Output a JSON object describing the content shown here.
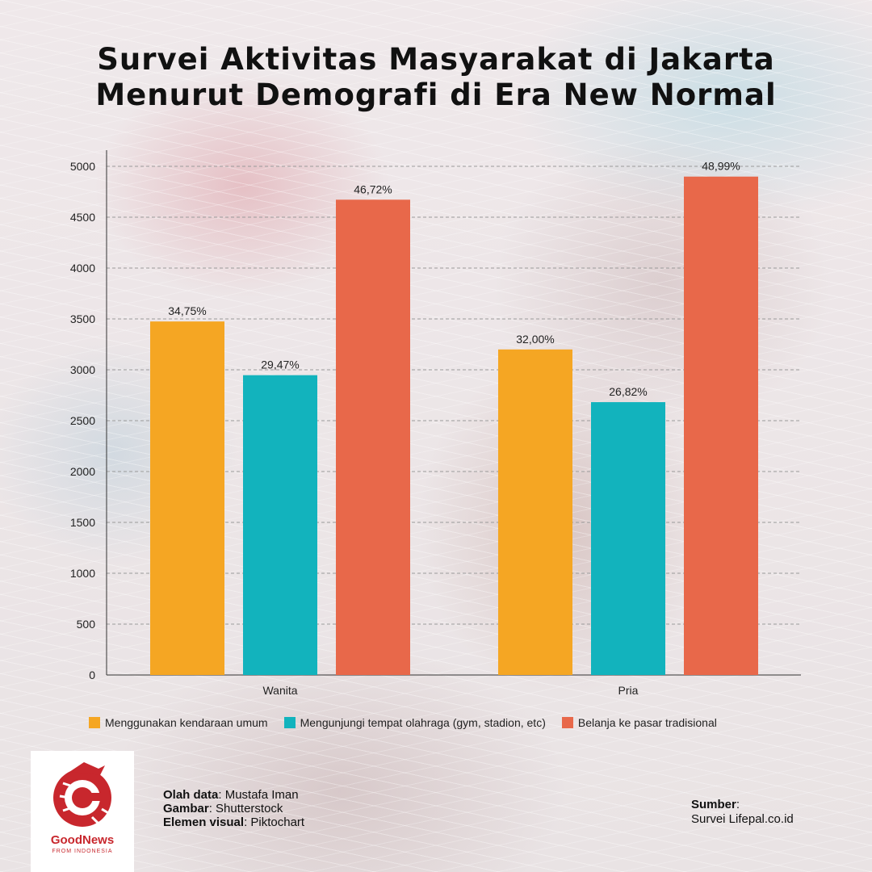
{
  "title": {
    "line1": "Survei Aktivitas Masyarakat di Jakarta",
    "line2": "Menurut Demografi di Era New Normal"
  },
  "chart_data": {
    "type": "bar",
    "categories": [
      "Wanita",
      "Pria"
    ],
    "series": [
      {
        "name": "Menggunakan kendaraan umum",
        "values": [
          3475,
          3200
        ],
        "labels": [
          "34,75%",
          "32,00%"
        ],
        "color": "#f5a623"
      },
      {
        "name": "Mengunjungi tempat olahraga (gym, stadion, etc)",
        "values": [
          2947,
          2682
        ],
        "labels": [
          "29,47%",
          "26,82%"
        ],
        "color": "#12b3bd"
      },
      {
        "name": "Belanja ke pasar tradisional",
        "values": [
          4672,
          4899
        ],
        "labels": [
          "46,72%",
          "48,99%"
        ],
        "color": "#e8684a"
      }
    ],
    "yticks": [
      0,
      500,
      1000,
      1500,
      2000,
      2500,
      3000,
      3500,
      4000,
      4500,
      5000
    ],
    "ylim": [
      0,
      5200
    ],
    "grid": true,
    "legend_position": "bottom"
  },
  "logo": {
    "name": "GoodNews",
    "tagline": "FROM INDONESIA"
  },
  "credits": {
    "olah_label": "Olah data",
    "olah_value": ": Mustafa Iman",
    "gambar_label": "Gambar",
    "gambar_value": ": Shutterstock",
    "elemen_label": "Elemen visual",
    "elemen_value": ": Piktochart"
  },
  "source": {
    "label": "Sumber",
    "colon": ":",
    "value": "Survei Lifepal.co.id"
  }
}
